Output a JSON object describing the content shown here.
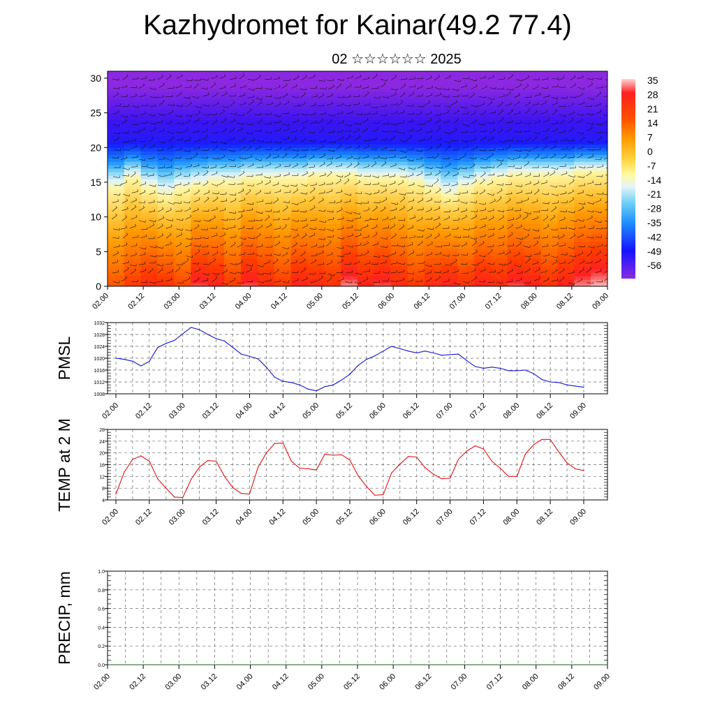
{
  "title": "Kazhydromet for Kainar(49.2 77.4)",
  "subtitle": "02 ☆☆☆☆☆☆ 2025",
  "colors": {
    "pmsl_line": "#1414d2",
    "temp_line": "#e01010",
    "precip_line": "#1a5a1a",
    "grid": "#555555"
  },
  "chart_data": [
    {
      "type": "heatmap",
      "title": "Kazhydromet for Kainar(49.2 77.4)",
      "subtitle": "02 ☆☆☆☆☆☆ 2025",
      "xlabel": "",
      "ylabel": "",
      "x_ticks": [
        "02.00",
        "02.12",
        "03.00",
        "03.12",
        "04.00",
        "04.12",
        "05.00",
        "05.12",
        "06.00",
        "06.12",
        "07.00",
        "07.12",
        "08.00",
        "08.12",
        "09.00"
      ],
      "y_ticks": [
        "0",
        "5",
        "10",
        "15",
        "20",
        "25",
        "30"
      ],
      "ylim": [
        0,
        31
      ],
      "colorbar_labels": [
        "35",
        "28",
        "21",
        "14",
        "7",
        "0",
        "-7",
        "-14",
        "-21",
        "-28",
        "-35",
        "-42",
        "-49",
        "-56"
      ],
      "colorbar_range": [
        -56,
        35
      ],
      "overlay": "wind barbs",
      "temperature_at_0km": [
        18,
        22,
        26,
        24,
        20,
        30,
        28,
        22,
        30,
        26,
        22,
        28,
        26,
        24,
        32,
        28,
        30,
        26,
        22,
        26,
        28,
        24,
        28,
        26,
        30,
        28,
        24,
        28,
        32,
        34
      ],
      "freezing_level_km": [
        14,
        15.5,
        14,
        13,
        14,
        14.5,
        15,
        15,
        15.5,
        15.5,
        15.5,
        15.5,
        16,
        16,
        16,
        15.5,
        15.5,
        15.5,
        15,
        14,
        13,
        14,
        15,
        15.5,
        16,
        16,
        16,
        16,
        16.5,
        16.5
      ]
    },
    {
      "type": "line",
      "title": "",
      "xlabel": "",
      "ylabel": "PMSL",
      "ylim": [
        1008,
        1032
      ],
      "y_ticks": [
        "1008",
        "1012",
        "1016",
        "1020",
        "1024",
        "1028",
        "1032"
      ],
      "x_ticks": [
        "02.00",
        "02.12",
        "03.00",
        "03.12",
        "04.00",
        "04.12",
        "05.00",
        "05.12",
        "06.00",
        "06.12",
        "07.00",
        "07.12",
        "08.00",
        "08.12",
        "09.00"
      ],
      "grid": true,
      "x": [
        0,
        3,
        6,
        9,
        12,
        15,
        18,
        21,
        24,
        27,
        30,
        33,
        36,
        39,
        42,
        45,
        48,
        51,
        54,
        57,
        60,
        63,
        66,
        69,
        72,
        75,
        78,
        81,
        84,
        87,
        90,
        93,
        96,
        99,
        102,
        105,
        108,
        111,
        114,
        117,
        120,
        123,
        126,
        129,
        132,
        135,
        138,
        141,
        144,
        147,
        150,
        153,
        156,
        159,
        162,
        165,
        168
      ],
      "values": [
        1020,
        1019.6,
        1019,
        1017.4,
        1019,
        1023.6,
        1025,
        1026,
        1028.2,
        1030.4,
        1029.6,
        1028,
        1026.6,
        1025.8,
        1023.6,
        1021.4,
        1020.6,
        1019.8,
        1017,
        1013.6,
        1012.2,
        1011.8,
        1011,
        1009.6,
        1009,
        1010.4,
        1011,
        1012.6,
        1014.6,
        1017.6,
        1019.6,
        1020.8,
        1022.4,
        1024,
        1023.2,
        1022.4,
        1021.8,
        1022.4,
        1021.8,
        1021,
        1021.2,
        1021.4,
        1019.2,
        1017.2,
        1016.6,
        1017,
        1016.6,
        1015.8,
        1015.8,
        1016,
        1014.8,
        1012.8,
        1012,
        1011.8,
        1011,
        1010.6,
        1010.2
      ]
    },
    {
      "type": "line",
      "title": "",
      "xlabel": "",
      "ylabel": "TEMP at 2 M",
      "ylim": [
        4,
        28
      ],
      "y_ticks": [
        "4",
        "8",
        "12",
        "16",
        "20",
        "24",
        "28"
      ],
      "x_ticks": [
        "02.00",
        "02.12",
        "03.00",
        "03.12",
        "04.00",
        "04.12",
        "05.00",
        "05.12",
        "06.00",
        "06.12",
        "07.00",
        "07.12",
        "08.00",
        "08.12",
        "09.00"
      ],
      "grid": true,
      "x": [
        0,
        3,
        6,
        9,
        12,
        15,
        18,
        21,
        24,
        27,
        30,
        33,
        36,
        39,
        42,
        45,
        48,
        51,
        54,
        57,
        60,
        63,
        66,
        69,
        72,
        75,
        78,
        81,
        84,
        87,
        90,
        93,
        96,
        99,
        102,
        105,
        108,
        111,
        114,
        117,
        120,
        123,
        126,
        129,
        132,
        135,
        138,
        141,
        144,
        147,
        150,
        153,
        156,
        159,
        162,
        165,
        168
      ],
      "values": [
        6,
        13.5,
        17.8,
        19,
        17.2,
        11.2,
        8,
        5,
        4.8,
        11,
        15.2,
        17.4,
        17.2,
        12,
        8.2,
        6.2,
        6,
        15,
        20,
        23.2,
        23.4,
        17.2,
        14.8,
        14.6,
        14.2,
        19.6,
        19.2,
        19.4,
        17.6,
        12.2,
        8.6,
        5.6,
        5.8,
        13.2,
        16.2,
        18.8,
        18.6,
        15,
        12.8,
        11.2,
        11.4,
        17.8,
        20.6,
        22.4,
        21.4,
        17.2,
        14.8,
        12,
        12,
        19.6,
        22.8,
        24.6,
        24.6,
        20.4,
        16.6,
        14.6,
        14
      ]
    },
    {
      "type": "line",
      "title": "",
      "xlabel": "",
      "ylabel": "PRECIP, mm",
      "ylim": [
        0,
        1
      ],
      "y_ticks": [
        "0.0",
        "0.2",
        "0.4",
        "0.6",
        "0.8",
        "1.0"
      ],
      "x_ticks": [
        "02.00",
        "02.12",
        "03.00",
        "03.12",
        "04.00",
        "04.12",
        "05.00",
        "05.12",
        "06.00",
        "06.12",
        "07.00",
        "07.12",
        "08.00",
        "08.12",
        "09.00"
      ],
      "grid": true,
      "x": [
        0,
        168
      ],
      "values": [
        0,
        0
      ]
    }
  ]
}
